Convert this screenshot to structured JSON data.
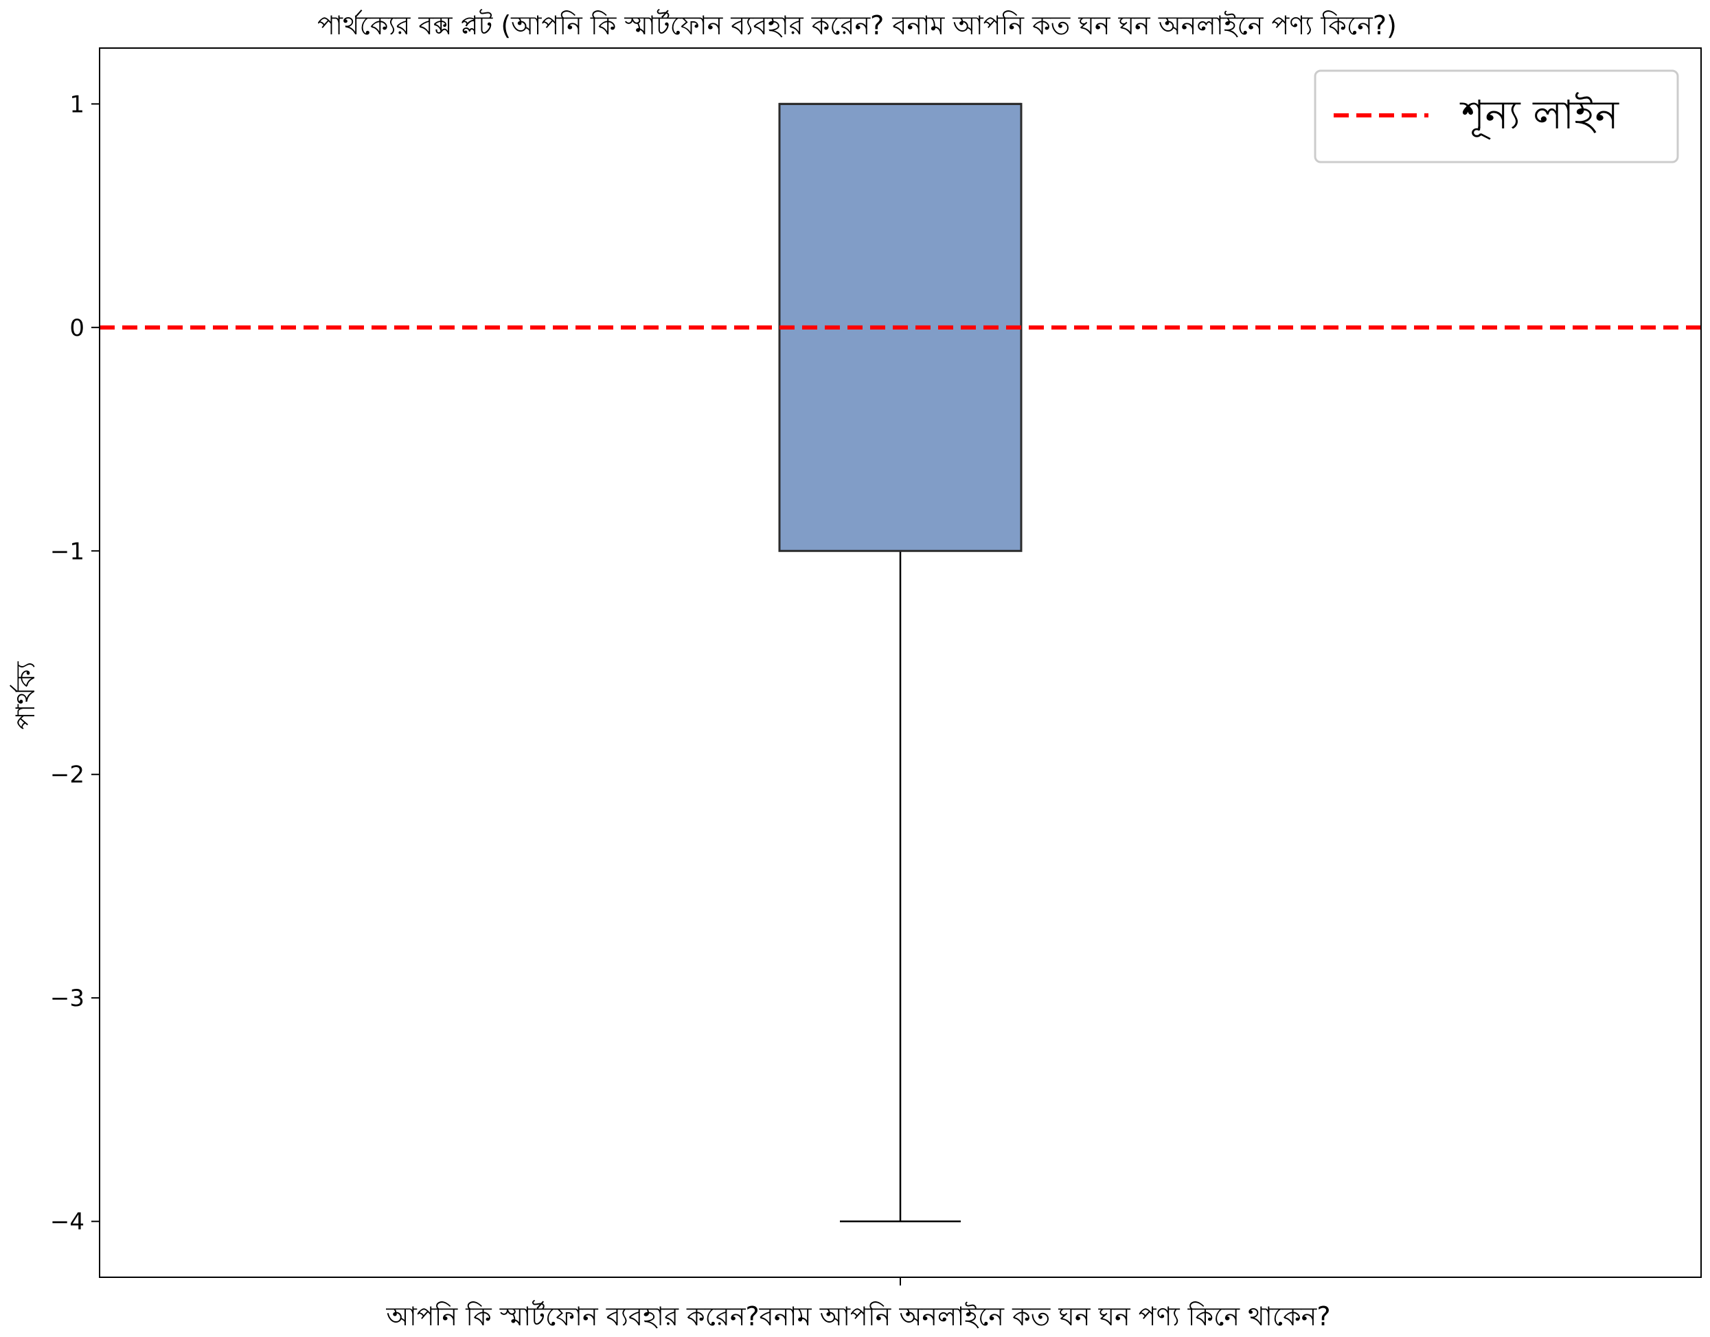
{
  "chart_data": {
    "type": "box",
    "title": "পার্থক্যের বক্স প্লট (আপনি কি স্মার্টফোন ব্যবহার করেন? বনাম আপনি কত ঘন ঘন অনলাইনে পণ্য কিনে?)",
    "xlabel": "আপনি কি স্মার্টফোন ব্যবহার করেন?বনাম আপনি অনলাইনে কত ঘন ঘন পণ্য কিনে থাকেন?",
    "ylabel": "পার্থক্য",
    "ylim": [
      -4.25,
      1.25
    ],
    "yticks": [
      1,
      0,
      -1,
      -2,
      -3,
      -4
    ],
    "ytick_labels": [
      "1",
      "0",
      "−1",
      "−2",
      "−3",
      "−4"
    ],
    "box": {
      "min": -4,
      "q1": -1,
      "median": 1,
      "q3": 1,
      "max": 1,
      "color": "#819dc7",
      "edge_color": "#2b2b2b"
    },
    "reference_line": {
      "y": 0,
      "label": "শূন্য লাইন",
      "color": "#ff0000",
      "style": "dashed"
    },
    "legend_position": "top-right",
    "grid": false
  }
}
